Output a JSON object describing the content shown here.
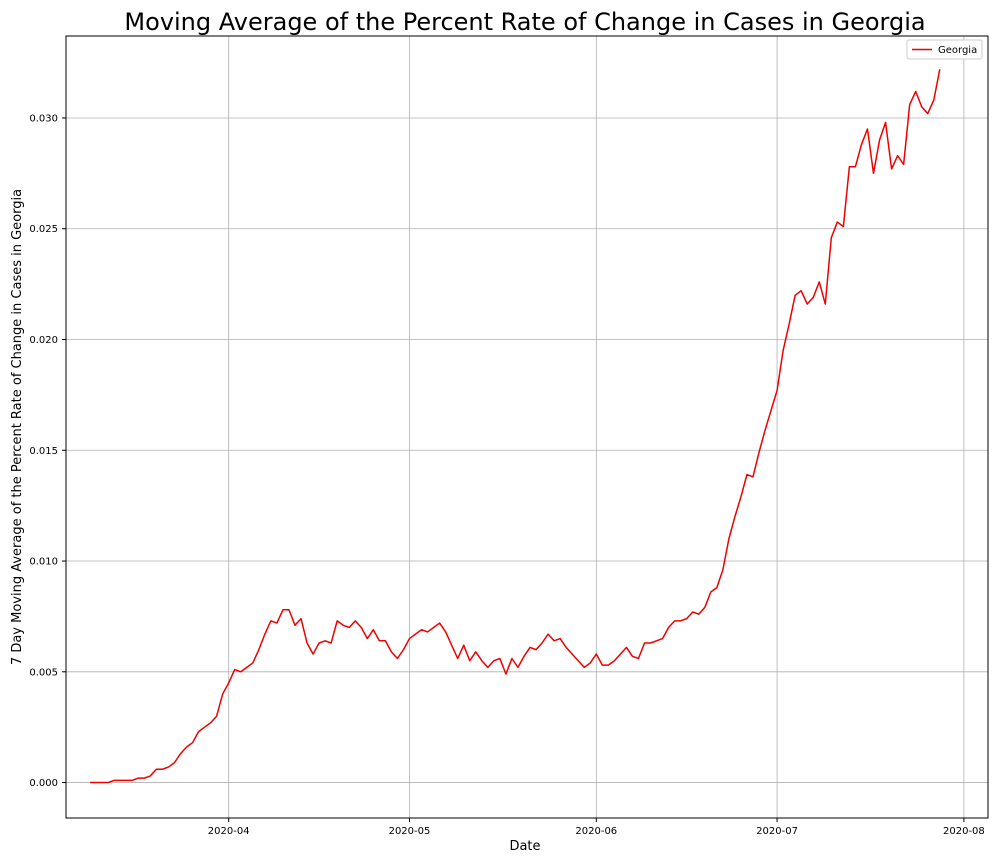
{
  "chart_data": {
    "type": "line",
    "title": "Moving Average of the Percent Rate of Change in Cases in Georgia",
    "xlabel": "Date",
    "ylabel": "7 Day Moving Average of the Percent Rate of Change in Cases in Georgia",
    "xlim": [
      "2020-03-05",
      "2020-08-05"
    ],
    "ylim": [
      -0.0016,
      0.0337
    ],
    "grid": true,
    "legend": {
      "placement": "top-right"
    },
    "x_ticks": [
      {
        "date": "2020-04-01",
        "label": "2020-04"
      },
      {
        "date": "2020-05-01",
        "label": "2020-05"
      },
      {
        "date": "2020-06-01",
        "label": "2020-06"
      },
      {
        "date": "2020-07-01",
        "label": "2020-07"
      },
      {
        "date": "2020-08-01",
        "label": "2020-08"
      }
    ],
    "y_ticks": [
      {
        "value": 0.0,
        "label": "0.000"
      },
      {
        "value": 0.005,
        "label": "0.005"
      },
      {
        "value": 0.01,
        "label": "0.010"
      },
      {
        "value": 0.015,
        "label": "0.015"
      },
      {
        "value": 0.02,
        "label": "0.020"
      },
      {
        "value": 0.025,
        "label": "0.025"
      },
      {
        "value": 0.03,
        "label": "0.030"
      }
    ],
    "series": [
      {
        "name": "Georgia",
        "color": "#ee0000",
        "points": [
          [
            "2020-03-09",
            0.0
          ],
          [
            "2020-03-12",
            0.0
          ],
          [
            "2020-03-13",
            0.0001
          ],
          [
            "2020-03-16",
            0.0001
          ],
          [
            "2020-03-17",
            0.0002
          ],
          [
            "2020-03-18",
            0.0002
          ],
          [
            "2020-03-19",
            0.0003
          ],
          [
            "2020-03-20",
            0.0006
          ],
          [
            "2020-03-21",
            0.0006
          ],
          [
            "2020-03-22",
            0.0007
          ],
          [
            "2020-03-23",
            0.0009
          ],
          [
            "2020-03-24",
            0.0013
          ],
          [
            "2020-03-25",
            0.0016
          ],
          [
            "2020-03-26",
            0.0018
          ],
          [
            "2020-03-27",
            0.0023
          ],
          [
            "2020-03-28",
            0.0025
          ],
          [
            "2020-03-29",
            0.0027
          ],
          [
            "2020-03-30",
            0.003
          ],
          [
            "2020-03-31",
            0.004
          ],
          [
            "2020-04-01",
            0.0045
          ],
          [
            "2020-04-02",
            0.0051
          ],
          [
            "2020-04-03",
            0.005
          ],
          [
            "2020-04-04",
            0.0052
          ],
          [
            "2020-04-05",
            0.0054
          ],
          [
            "2020-04-06",
            0.006
          ],
          [
            "2020-04-07",
            0.0067
          ],
          [
            "2020-04-08",
            0.0073
          ],
          [
            "2020-04-09",
            0.0072
          ],
          [
            "2020-04-10",
            0.0078
          ],
          [
            "2020-04-11",
            0.0078
          ],
          [
            "2020-04-12",
            0.0071
          ],
          [
            "2020-04-13",
            0.0074
          ],
          [
            "2020-04-14",
            0.0063
          ],
          [
            "2020-04-15",
            0.0058
          ],
          [
            "2020-04-16",
            0.0063
          ],
          [
            "2020-04-17",
            0.0064
          ],
          [
            "2020-04-18",
            0.0063
          ],
          [
            "2020-04-19",
            0.0073
          ],
          [
            "2020-04-20",
            0.0071
          ],
          [
            "2020-04-21",
            0.007
          ],
          [
            "2020-04-22",
            0.0073
          ],
          [
            "2020-04-23",
            0.007
          ],
          [
            "2020-04-24",
            0.0065
          ],
          [
            "2020-04-25",
            0.0069
          ],
          [
            "2020-04-26",
            0.0064
          ],
          [
            "2020-04-27",
            0.0064
          ],
          [
            "2020-04-28",
            0.0059
          ],
          [
            "2020-04-29",
            0.0056
          ],
          [
            "2020-04-30",
            0.006
          ],
          [
            "2020-05-01",
            0.0065
          ],
          [
            "2020-05-02",
            0.0067
          ],
          [
            "2020-05-03",
            0.0069
          ],
          [
            "2020-05-04",
            0.0068
          ],
          [
            "2020-05-05",
            0.007
          ],
          [
            "2020-05-06",
            0.0072
          ],
          [
            "2020-05-07",
            0.0068
          ],
          [
            "2020-05-08",
            0.0062
          ],
          [
            "2020-05-09",
            0.0056
          ],
          [
            "2020-05-10",
            0.0062
          ],
          [
            "2020-05-11",
            0.0055
          ],
          [
            "2020-05-12",
            0.0059
          ],
          [
            "2020-05-13",
            0.0055
          ],
          [
            "2020-05-14",
            0.0052
          ],
          [
            "2020-05-15",
            0.0055
          ],
          [
            "2020-05-16",
            0.0056
          ],
          [
            "2020-05-17",
            0.0049
          ],
          [
            "2020-05-18",
            0.0056
          ],
          [
            "2020-05-19",
            0.0052
          ],
          [
            "2020-05-20",
            0.0057
          ],
          [
            "2020-05-21",
            0.0061
          ],
          [
            "2020-05-22",
            0.006
          ],
          [
            "2020-05-23",
            0.0063
          ],
          [
            "2020-05-24",
            0.0067
          ],
          [
            "2020-05-25",
            0.0064
          ],
          [
            "2020-05-26",
            0.0065
          ],
          [
            "2020-05-27",
            0.0061
          ],
          [
            "2020-05-28",
            0.0058
          ],
          [
            "2020-05-29",
            0.0055
          ],
          [
            "2020-05-30",
            0.0052
          ],
          [
            "2020-05-31",
            0.0054
          ],
          [
            "2020-06-01",
            0.0058
          ],
          [
            "2020-06-02",
            0.0053
          ],
          [
            "2020-06-03",
            0.0053
          ],
          [
            "2020-06-04",
            0.0055
          ],
          [
            "2020-06-05",
            0.0058
          ],
          [
            "2020-06-06",
            0.0061
          ],
          [
            "2020-06-07",
            0.0057
          ],
          [
            "2020-06-08",
            0.0056
          ],
          [
            "2020-06-09",
            0.0063
          ],
          [
            "2020-06-10",
            0.0063
          ],
          [
            "2020-06-11",
            0.0064
          ],
          [
            "2020-06-12",
            0.0065
          ],
          [
            "2020-06-13",
            0.007
          ],
          [
            "2020-06-14",
            0.0073
          ],
          [
            "2020-06-15",
            0.0073
          ],
          [
            "2020-06-16",
            0.0074
          ],
          [
            "2020-06-17",
            0.0077
          ],
          [
            "2020-06-18",
            0.0076
          ],
          [
            "2020-06-19",
            0.0079
          ],
          [
            "2020-06-20",
            0.0086
          ],
          [
            "2020-06-21",
            0.0088
          ],
          [
            "2020-06-22",
            0.0096
          ],
          [
            "2020-06-23",
            0.011
          ],
          [
            "2020-06-24",
            0.012
          ],
          [
            "2020-06-25",
            0.0129
          ],
          [
            "2020-06-26",
            0.0139
          ],
          [
            "2020-06-27",
            0.0138
          ],
          [
            "2020-06-28",
            0.0149
          ],
          [
            "2020-06-29",
            0.0159
          ],
          [
            "2020-06-30",
            0.0168
          ],
          [
            "2020-07-01",
            0.0177
          ],
          [
            "2020-07-02",
            0.0195
          ],
          [
            "2020-07-03",
            0.0207
          ],
          [
            "2020-07-04",
            0.022
          ],
          [
            "2020-07-05",
            0.0222
          ],
          [
            "2020-07-06",
            0.0216
          ],
          [
            "2020-07-07",
            0.0219
          ],
          [
            "2020-07-08",
            0.0226
          ],
          [
            "2020-07-09",
            0.0216
          ],
          [
            "2020-07-10",
            0.0246
          ],
          [
            "2020-07-11",
            0.0253
          ],
          [
            "2020-07-12",
            0.0251
          ],
          [
            "2020-07-13",
            0.0278
          ],
          [
            "2020-07-14",
            0.0278
          ],
          [
            "2020-07-15",
            0.0288
          ],
          [
            "2020-07-16",
            0.0295
          ],
          [
            "2020-07-17",
            0.0275
          ],
          [
            "2020-07-18",
            0.029
          ],
          [
            "2020-07-19",
            0.0298
          ],
          [
            "2020-07-20",
            0.0277
          ],
          [
            "2020-07-21",
            0.0283
          ],
          [
            "2020-07-22",
            0.0279
          ],
          [
            "2020-07-23",
            0.0306
          ],
          [
            "2020-07-24",
            0.0312
          ],
          [
            "2020-07-25",
            0.0305
          ],
          [
            "2020-07-26",
            0.0302
          ],
          [
            "2020-07-27",
            0.0308
          ],
          [
            "2020-07-28",
            0.0322
          ]
        ]
      }
    ]
  }
}
